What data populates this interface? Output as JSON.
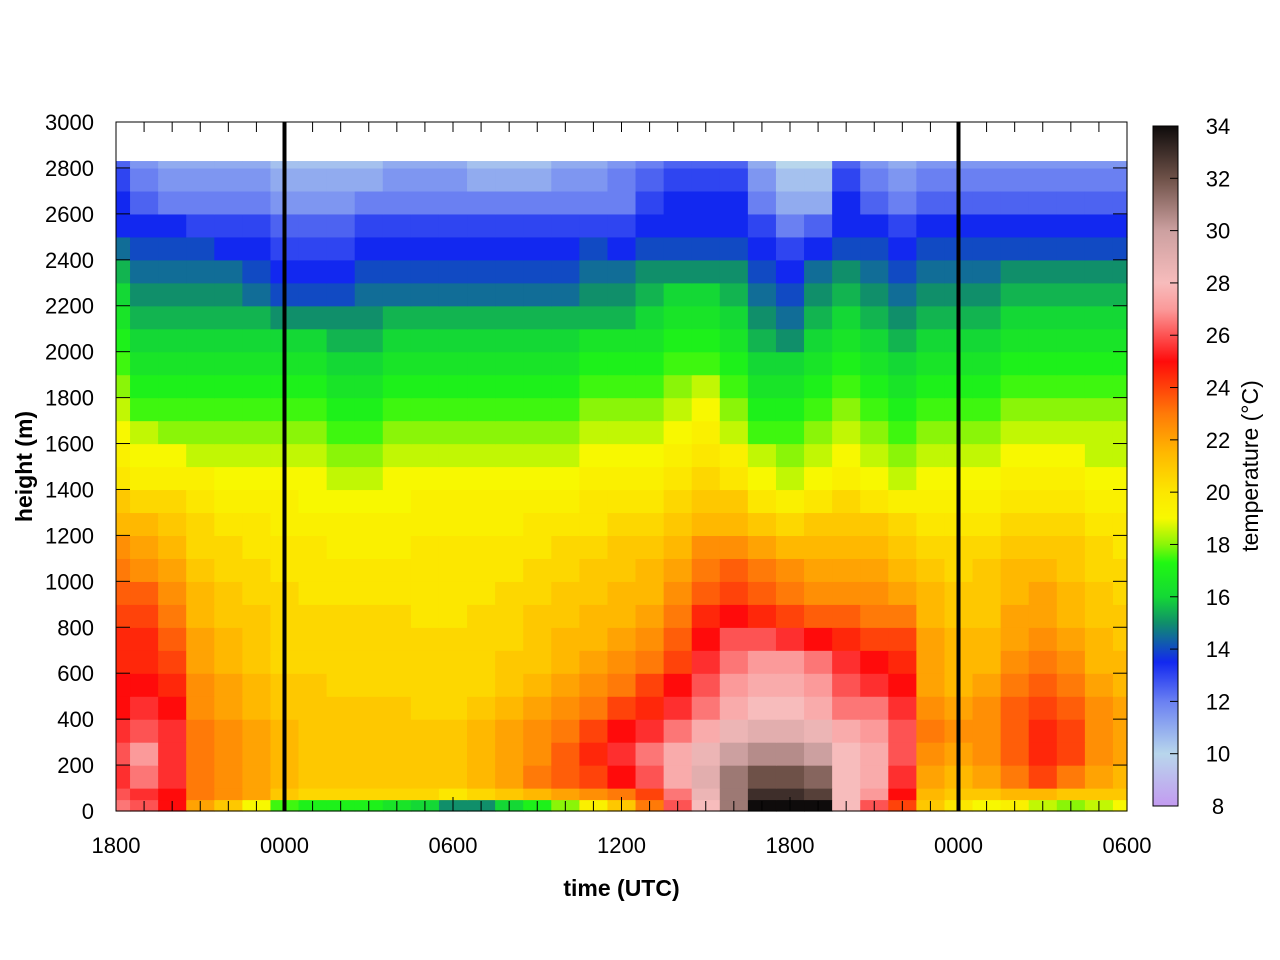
{
  "chart_data": {
    "type": "heatmap",
    "title": "",
    "xlabel": "time (UTC)",
    "ylabel": "height (m)",
    "colorbar_label": "temperature (°C)",
    "x_tick_labels": [
      "1800",
      "0000",
      "0600",
      "1200",
      "1800",
      "0000",
      "0600"
    ],
    "x_range_hours": [
      0,
      36
    ],
    "y_ticks": [
      0,
      200,
      400,
      600,
      800,
      1000,
      1200,
      1400,
      1600,
      1800,
      2000,
      2200,
      2400,
      2600,
      2800,
      3000
    ],
    "ylim": [
      0,
      3000
    ],
    "data_top_height": 2830,
    "colorbar_ticks": [
      8,
      10,
      12,
      14,
      16,
      18,
      20,
      22,
      24,
      26,
      28,
      30,
      32,
      34
    ],
    "color_range": [
      8,
      34
    ],
    "vertical_markers_hours": [
      6,
      30
    ],
    "grid": false,
    "colormap": [
      [
        8,
        "#c39bf0"
      ],
      [
        10,
        "#b8d6ec"
      ],
      [
        12,
        "#6a80f2"
      ],
      [
        13.5,
        "#1228f0"
      ],
      [
        15,
        "#108f6a"
      ],
      [
        16,
        "#14d835"
      ],
      [
        17.3,
        "#20f812"
      ],
      [
        18,
        "#8af508"
      ],
      [
        19,
        "#f8f800"
      ],
      [
        20,
        "#fce700"
      ],
      [
        21.5,
        "#ffb800"
      ],
      [
        23,
        "#ff7a08"
      ],
      [
        25,
        "#ff0b0b"
      ],
      [
        27,
        "#fb9a9a"
      ],
      [
        28,
        "#f7bcbc"
      ],
      [
        30,
        "#cca0a0"
      ],
      [
        32,
        "#6e5148"
      ],
      [
        34,
        "#0e0b0b"
      ]
    ],
    "column_hours": [
      0,
      1,
      2,
      3,
      4,
      5,
      6,
      7,
      8,
      9,
      10,
      11,
      12,
      13,
      14,
      15,
      16,
      17,
      18,
      19,
      20,
      21,
      22,
      23,
      24,
      25,
      26,
      27,
      28,
      29,
      30,
      31,
      32,
      33,
      34,
      35,
      36
    ],
    "row_heights": [
      0,
      50,
      100,
      200,
      300,
      400,
      500,
      600,
      700,
      800,
      900,
      1000,
      1100,
      1200,
      1300,
      1400,
      1500,
      1600,
      1700,
      1800,
      1900,
      2000,
      2100,
      2200,
      2300,
      2400,
      2500,
      2600,
      2700,
      2800
    ],
    "temperature_grid": [
      [
        26.5,
        26,
        25,
        22,
        21,
        19,
        17.5,
        17,
        17,
        17,
        16.5,
        16,
        15,
        15,
        16,
        17,
        18,
        19.5,
        21,
        23,
        26,
        28,
        31,
        34,
        34,
        34,
        28,
        26,
        24,
        21,
        20,
        19,
        19.5,
        18.5,
        18,
        18.5,
        19
      ],
      [
        26,
        25.5,
        25,
        23,
        22.5,
        22,
        21,
        20.5,
        20.5,
        20.5,
        20.5,
        20.5,
        20,
        20.5,
        21,
        21.5,
        22,
        22.5,
        23,
        24,
        26.5,
        28.5,
        31,
        33,
        33,
        32.5,
        28,
        27,
        25,
        21.5,
        21,
        21,
        21.5,
        21.5,
        21,
        21,
        21
      ],
      [
        25.5,
        26.5,
        25.5,
        23,
        22.5,
        22,
        21.5,
        21,
        21,
        21,
        21,
        21,
        21,
        21.5,
        22,
        23,
        23.5,
        24,
        25,
        26,
        27.5,
        29,
        31,
        32,
        32,
        31.5,
        28,
        27.5,
        25.5,
        22,
        21.5,
        22,
        23,
        24,
        23,
        22,
        21.5
      ],
      [
        26,
        27,
        25.5,
        23,
        22.5,
        22,
        21.5,
        21,
        21,
        21,
        21,
        21,
        21,
        21.5,
        22,
        22.5,
        23.5,
        24.5,
        25.5,
        26.5,
        27.5,
        28.5,
        30,
        30.5,
        30.5,
        30,
        28,
        27.5,
        26,
        22.5,
        22,
        22.5,
        23.5,
        24.5,
        24,
        22.5,
        22
      ],
      [
        25.5,
        26,
        25.5,
        23,
        22.5,
        22,
        21.5,
        21,
        21,
        21,
        21,
        21,
        21,
        21.5,
        22,
        22.5,
        23,
        24,
        25,
        25.5,
        26.5,
        27.5,
        28.5,
        29,
        29,
        28.5,
        27.5,
        27,
        26,
        23,
        22.5,
        22.5,
        23.5,
        24.5,
        24,
        22.5,
        22
      ],
      [
        25,
        25.5,
        25,
        22.5,
        22,
        21.5,
        21,
        21,
        21,
        21,
        21,
        20.5,
        20.5,
        21,
        21.5,
        22,
        22.5,
        23,
        24,
        24.5,
        25.5,
        26.5,
        27.5,
        28,
        28,
        27.5,
        26.5,
        26.5,
        25.5,
        22.5,
        22,
        22.5,
        23.5,
        24,
        23.5,
        22.5,
        22
      ],
      [
        25,
        25,
        24.5,
        22.5,
        22,
        21.5,
        21,
        21,
        20.5,
        20.5,
        20.5,
        20.5,
        20.5,
        20.5,
        21,
        21.5,
        22,
        22.5,
        23,
        24,
        25,
        26,
        27,
        27.5,
        27.5,
        27,
        26,
        25.5,
        25,
        22,
        21.5,
        22,
        23,
        23.5,
        23,
        22,
        21.5
      ],
      [
        24.5,
        24.5,
        24,
        22,
        21.5,
        21,
        20.5,
        20.5,
        20.5,
        20.5,
        20.5,
        20.5,
        20.5,
        20.5,
        21,
        21,
        21.5,
        22,
        22.5,
        23,
        24,
        25.5,
        26.5,
        27,
        27,
        26.5,
        25.5,
        25,
        24.5,
        22,
        21.5,
        21.5,
        22.5,
        23,
        22.5,
        21.5,
        21.5
      ],
      [
        24.5,
        24.5,
        23.5,
        22,
        21.5,
        21,
        20.5,
        20.5,
        20.5,
        20.5,
        20.5,
        20.5,
        20.5,
        20.5,
        20.5,
        21,
        21.5,
        21.5,
        22,
        22.5,
        23.5,
        25,
        26,
        26,
        25.5,
        25,
        24.5,
        24,
        24,
        22,
        21.5,
        21.5,
        22,
        22.5,
        22,
        21.5,
        21
      ],
      [
        24,
        24,
        23,
        21.5,
        21,
        21,
        20.5,
        20.5,
        20.5,
        20.5,
        20.5,
        20,
        20,
        20.5,
        20.5,
        21,
        21,
        21.5,
        21.5,
        22,
        23,
        24.5,
        25,
        24.5,
        24,
        23.5,
        23.5,
        23,
        23,
        21.5,
        21,
        21,
        22,
        22,
        21.5,
        21,
        21
      ],
      [
        23.5,
        23.5,
        22.5,
        21.5,
        21,
        20.5,
        20.5,
        20,
        20,
        20,
        20,
        20,
        20,
        20,
        20.5,
        20.5,
        21,
        21,
        21.5,
        21.5,
        22.5,
        23.5,
        24,
        23.5,
        23,
        22.5,
        22.5,
        22.5,
        22,
        21.5,
        21,
        21,
        21.5,
        22,
        21.5,
        21,
        20.5
      ],
      [
        23,
        22.5,
        22,
        21,
        20.5,
        20.5,
        20,
        20,
        20,
        20,
        20,
        20,
        20,
        20,
        20,
        20.5,
        20.5,
        21,
        21,
        21.5,
        22,
        23,
        23.5,
        23,
        22.5,
        22,
        22,
        22,
        21.5,
        21,
        20.5,
        21,
        21.5,
        21.5,
        21,
        20.5,
        20.5
      ],
      [
        22.5,
        22,
        21.5,
        20.5,
        20.5,
        20,
        20,
        20,
        19.5,
        19.5,
        19.5,
        20,
        20,
        20,
        20,
        20,
        20.5,
        20.5,
        21,
        21,
        21.5,
        22.5,
        22.5,
        22,
        21.5,
        21.5,
        21.5,
        21.5,
        21,
        20.5,
        20.5,
        20.5,
        21,
        21,
        21,
        20.5,
        20
      ],
      [
        21.5,
        21.5,
        21,
        20.5,
        20,
        20,
        19.5,
        19.5,
        19.5,
        19.5,
        19.5,
        19.5,
        19.5,
        19.5,
        19.5,
        20,
        20,
        20,
        20.5,
        20.5,
        21,
        21.5,
        21.5,
        21,
        20.5,
        21,
        21,
        21,
        20.5,
        20,
        20,
        20,
        20.5,
        20.5,
        20.5,
        20,
        20
      ],
      [
        21,
        20.5,
        20.5,
        20,
        19.5,
        19.5,
        19.5,
        19,
        19,
        19,
        19,
        19.5,
        19.5,
        19.5,
        19.5,
        19.5,
        19.5,
        20,
        20,
        20,
        20.5,
        21,
        21,
        20,
        19.5,
        20,
        20.5,
        20,
        19.5,
        19.5,
        19.5,
        19.5,
        20,
        20,
        20,
        19.5,
        19.5
      ],
      [
        20,
        19.5,
        19.5,
        19.5,
        19,
        19,
        19,
        19,
        18.5,
        18.5,
        19,
        19,
        19,
        19,
        19,
        19,
        19,
        19.5,
        19.5,
        19.5,
        20,
        20.5,
        20,
        19,
        18.5,
        19,
        19.5,
        19,
        18.5,
        19,
        19,
        19,
        19.5,
        19.5,
        19.5,
        19,
        19
      ],
      [
        19.5,
        19,
        19,
        18.5,
        18.5,
        18.5,
        18.5,
        18.5,
        18,
        18,
        18.5,
        18.5,
        18.5,
        18.5,
        18.5,
        18.5,
        18.5,
        19,
        19,
        19,
        19.5,
        20,
        19.5,
        18.5,
        18,
        18.5,
        19,
        18.5,
        18,
        18.5,
        18.5,
        18.5,
        19,
        19,
        19,
        18.5,
        18.5
      ],
      [
        19,
        18.5,
        18,
        18,
        18,
        18,
        18,
        18,
        17.5,
        17.5,
        18,
        18,
        18,
        18,
        18,
        18,
        18,
        18.5,
        18.5,
        18.5,
        19,
        19.5,
        18.5,
        17.5,
        17.5,
        18,
        18.5,
        18,
        17.5,
        18,
        18,
        18,
        18.5,
        18.5,
        18.5,
        18.5,
        18.5
      ],
      [
        18.5,
        17.5,
        17.5,
        17.5,
        17.5,
        17.5,
        17.5,
        17.5,
        17,
        17,
        17.5,
        17.5,
        17.5,
        17.5,
        17.5,
        17.5,
        17.5,
        18,
        18,
        18,
        18.5,
        19,
        18,
        17,
        17,
        17.5,
        18,
        17.5,
        17,
        17.5,
        17.5,
        17.5,
        18,
        18,
        18,
        18,
        18
      ],
      [
        18,
        17,
        17,
        17,
        17,
        17,
        17,
        17,
        16.5,
        16.5,
        17,
        17,
        17,
        17,
        17,
        17,
        17,
        17.5,
        17.5,
        17.5,
        18,
        18.5,
        17.5,
        16.5,
        16.5,
        17,
        17.5,
        17,
        16.5,
        17,
        17,
        17,
        17.5,
        17.5,
        17.5,
        17.5,
        17.5
      ],
      [
        17.5,
        16.5,
        16.5,
        16.5,
        16.5,
        16.5,
        16.5,
        16.5,
        16,
        16,
        16.5,
        16.5,
        16.5,
        16.5,
        16.5,
        16.5,
        16.5,
        17,
        17,
        17,
        17.5,
        17.5,
        17,
        16,
        16,
        16.5,
        17,
        16.5,
        16,
        16.5,
        16.5,
        16.5,
        17,
        17,
        17,
        17,
        17
      ],
      [
        17,
        16,
        16,
        16,
        16,
        16,
        16,
        16,
        15.5,
        15.5,
        16,
        16,
        16,
        16,
        16,
        16,
        16,
        16.5,
        16.5,
        16.5,
        17,
        17,
        16.5,
        15.5,
        15,
        16,
        16.5,
        16,
        15.5,
        16,
        16,
        16,
        16.5,
        16.5,
        16.5,
        16.5,
        16.5
      ],
      [
        16.5,
        15.5,
        15.5,
        15.5,
        15.5,
        15.5,
        15,
        15,
        15,
        15,
        15.5,
        15.5,
        15.5,
        15.5,
        15.5,
        15.5,
        15.5,
        15.5,
        15.5,
        16,
        16.5,
        16.5,
        16,
        15,
        14.5,
        15.5,
        16,
        15.5,
        15,
        15.5,
        15.5,
        15.5,
        16,
        16,
        16,
        16,
        16
      ],
      [
        16,
        15,
        15,
        15,
        15,
        14.5,
        14,
        14,
        14,
        14.5,
        14.5,
        14.5,
        14.5,
        14.5,
        14.5,
        14.5,
        14.5,
        15,
        15,
        15.5,
        16,
        16,
        15.5,
        14.5,
        14,
        15,
        15.5,
        15,
        14.5,
        15,
        15,
        15,
        15.5,
        15.5,
        15.5,
        15.5,
        15.5
      ],
      [
        15.5,
        14.5,
        14.5,
        14.5,
        14.5,
        14,
        13.5,
        13.5,
        13.5,
        14,
        14,
        14,
        14,
        14,
        14,
        14,
        14,
        14.5,
        14.5,
        15,
        15,
        15,
        15,
        14,
        13.5,
        14.5,
        15,
        14.5,
        14,
        14.5,
        14.5,
        14.5,
        15,
        15,
        15,
        15,
        15
      ],
      [
        14.5,
        14,
        14,
        14,
        13.5,
        13.5,
        13,
        13,
        13,
        13.5,
        13.5,
        13.5,
        13.5,
        13.5,
        13.5,
        13.5,
        13.5,
        14,
        13.5,
        14,
        14,
        14,
        14,
        13.5,
        13,
        13.5,
        14,
        14,
        13.5,
        14,
        14,
        14,
        14,
        14,
        14,
        14,
        14
      ],
      [
        13.5,
        13.5,
        13.5,
        13,
        13,
        13,
        12.5,
        12.5,
        12.5,
        13,
        13,
        13,
        13,
        13,
        13,
        13,
        13,
        13,
        13,
        13.5,
        13.5,
        13.5,
        13.5,
        13,
        12,
        12.5,
        13.5,
        13.5,
        13,
        13.5,
        13.5,
        13.5,
        13.5,
        13.5,
        13.5,
        13.5,
        13.5
      ],
      [
        13.5,
        12.5,
        12,
        12,
        12,
        12,
        11.5,
        11.5,
        11.5,
        12,
        12,
        12,
        12,
        12,
        12,
        12,
        12,
        12,
        12,
        13,
        13.5,
        13.5,
        13.5,
        12,
        11,
        11,
        13.5,
        12.5,
        12,
        12.5,
        12.5,
        12.5,
        12.5,
        12.5,
        12.5,
        12.5,
        12.5
      ],
      [
        13,
        12,
        11.5,
        11.5,
        11.5,
        11.5,
        11,
        11,
        11,
        11,
        11.5,
        11.5,
        11.5,
        11,
        11,
        11,
        11.5,
        11.5,
        12,
        12.5,
        13,
        13,
        13,
        11.5,
        10.5,
        10.5,
        13,
        12,
        11.5,
        12,
        12,
        12,
        12,
        12,
        12,
        12,
        12
      ],
      [
        12.5,
        11.5,
        11,
        11,
        11,
        11,
        10.5,
        10.5,
        10.5,
        10.5,
        11,
        11,
        11,
        10.5,
        10.5,
        10.5,
        11,
        11,
        11.5,
        12,
        12.5,
        12.5,
        12.5,
        11,
        10,
        10,
        12.5,
        11.5,
        11,
        11.5,
        11.5,
        11.5,
        11.5,
        11.5,
        11.5,
        11.5,
        11.5
      ]
    ]
  }
}
